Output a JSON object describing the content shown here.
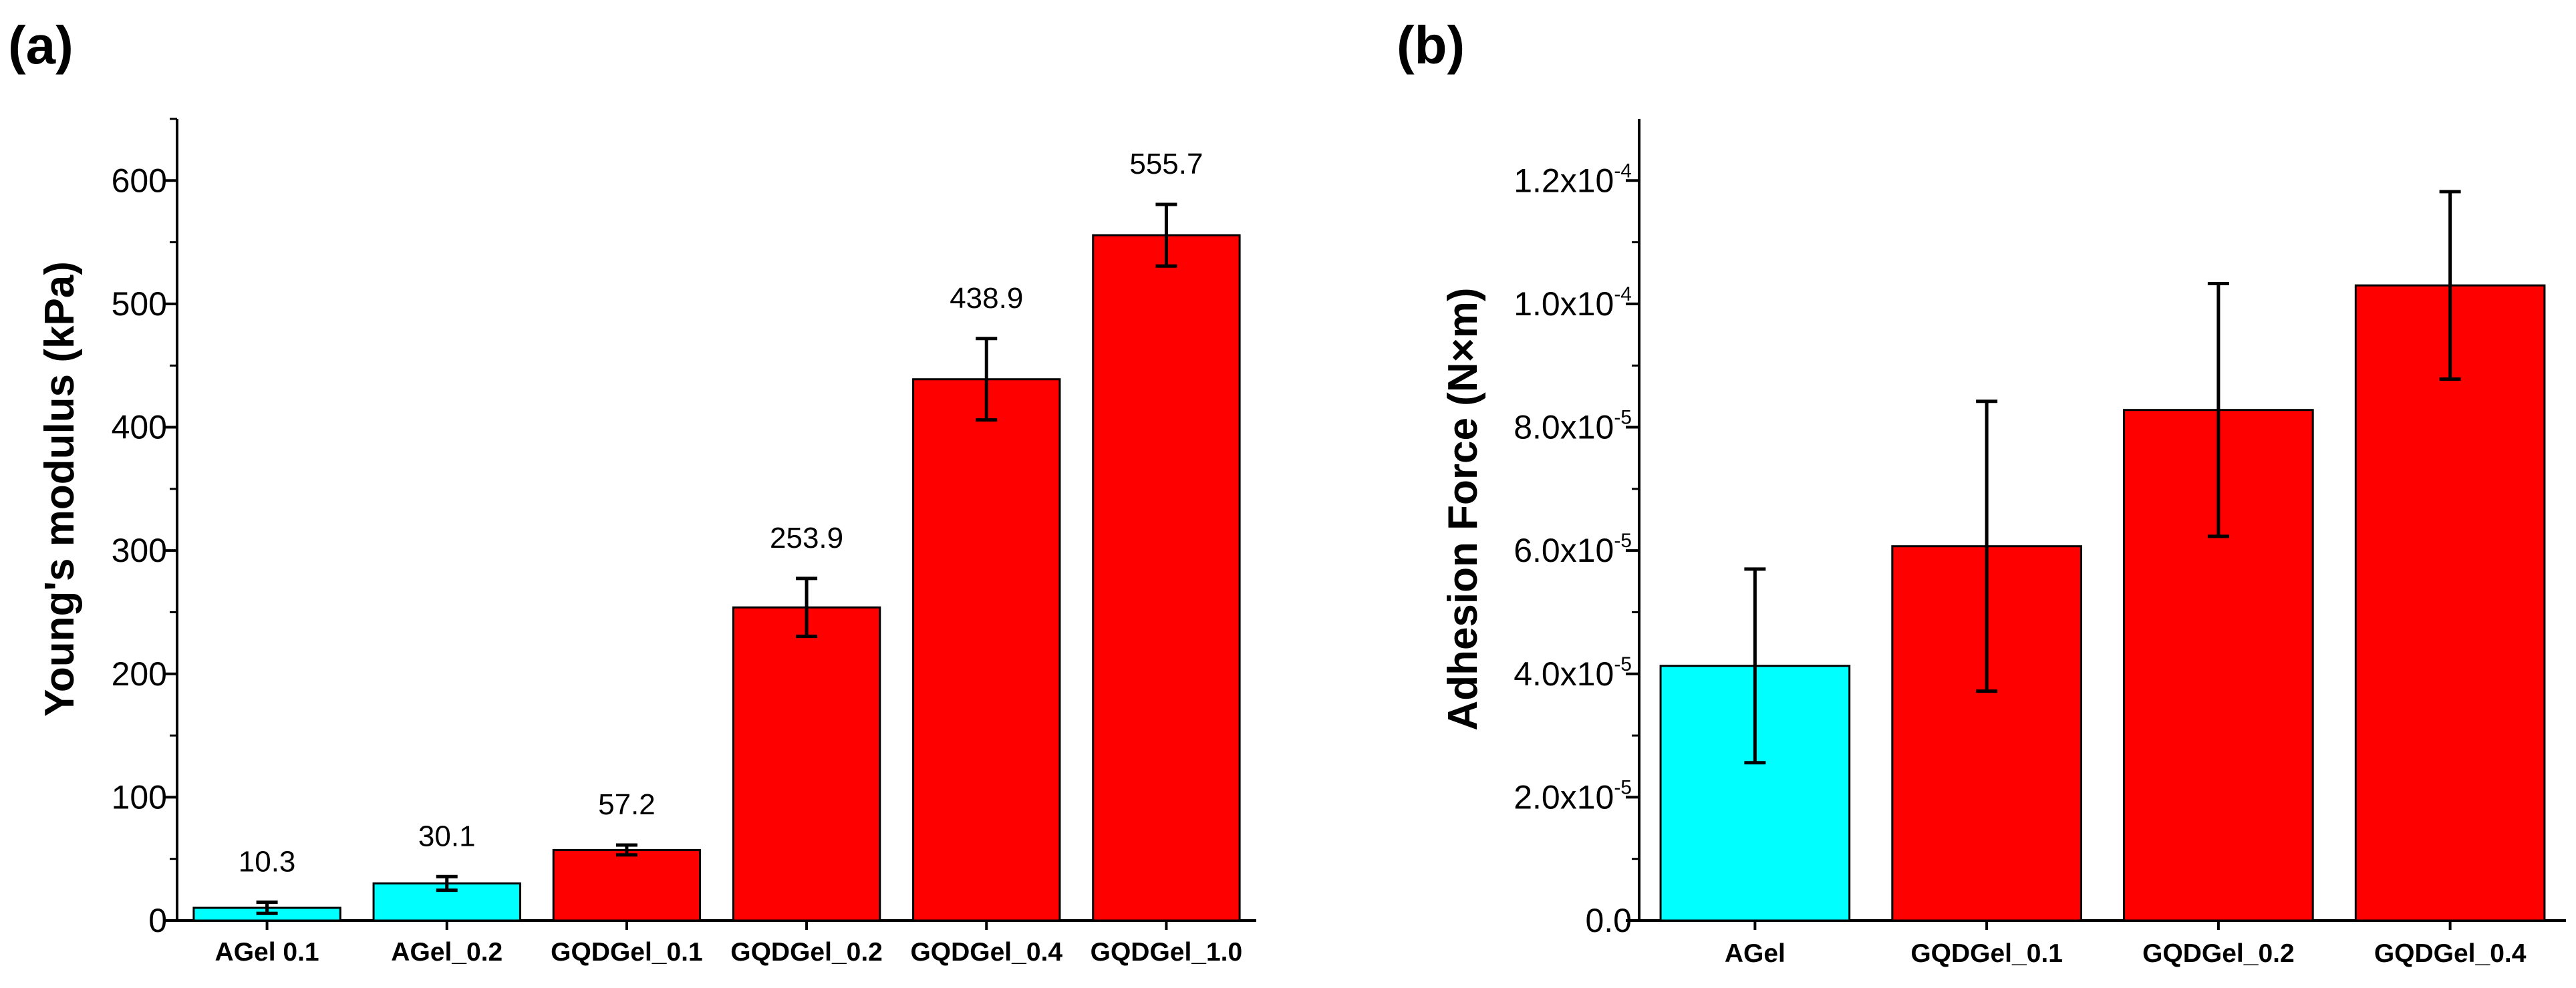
{
  "chart_data": [
    {
      "panel": "(a)",
      "type": "bar",
      "title": "",
      "xlabel": "",
      "ylabel": "Young's modulus (kPa)",
      "ylim": [
        0,
        650
      ],
      "yticks": [
        0,
        100,
        200,
        300,
        400,
        500,
        600
      ],
      "ytick_labels": [
        "0",
        "100",
        "200",
        "300",
        "400",
        "500",
        "600"
      ],
      "categories": [
        "AGel 0.1",
        "AGel_0.2",
        "GQDGel_0.1",
        "GQDGel_0.2",
        "GQDGel_0.4",
        "GQDGel_1.0"
      ],
      "values": [
        10.3,
        30.1,
        57.2,
        253.9,
        438.9,
        555.7
      ],
      "errors": [
        4.5,
        5.5,
        4.0,
        23.5,
        33.0,
        25.0
      ],
      "data_labels": [
        "10.3",
        "30.1",
        "57.2",
        "253.9",
        "438.9",
        "555.7"
      ],
      "colors": [
        "#00ffff",
        "#00ffff",
        "#ff0000",
        "#ff0000",
        "#ff0000",
        "#ff0000"
      ],
      "grid": false,
      "legend": "none"
    },
    {
      "panel": "(b)",
      "type": "bar",
      "title": "",
      "xlabel": "",
      "ylabel": "Adhesion Force (N×m)",
      "ylim": [
        0,
        0.00013
      ],
      "yticks": [
        0,
        2e-05,
        4e-05,
        6e-05,
        8e-05,
        0.0001,
        0.00012
      ],
      "ytick_labels": [
        {
          "base": "0.0",
          "exp": ""
        },
        {
          "base": "2.0x10",
          "exp": "-5"
        },
        {
          "base": "4.0x10",
          "exp": "-5"
        },
        {
          "base": "6.0x10",
          "exp": "-5"
        },
        {
          "base": "8.0x10",
          "exp": "-5"
        },
        {
          "base": "1.0x10",
          "exp": "-4"
        },
        {
          "base": "1.2x10",
          "exp": "-4"
        }
      ],
      "categories": [
        "AGel",
        "GQDGel_0.1",
        "GQDGel_0.2",
        "GQDGel_0.4"
      ],
      "values": [
        4.13e-05,
        6.07e-05,
        8.28e-05,
        0.000103
      ],
      "errors": [
        1.57e-05,
        2.35e-05,
        2.05e-05,
        1.52e-05
      ],
      "colors": [
        "#00ffff",
        "#ff0000",
        "#ff0000",
        "#ff0000"
      ],
      "grid": false,
      "legend": "none"
    }
  ]
}
